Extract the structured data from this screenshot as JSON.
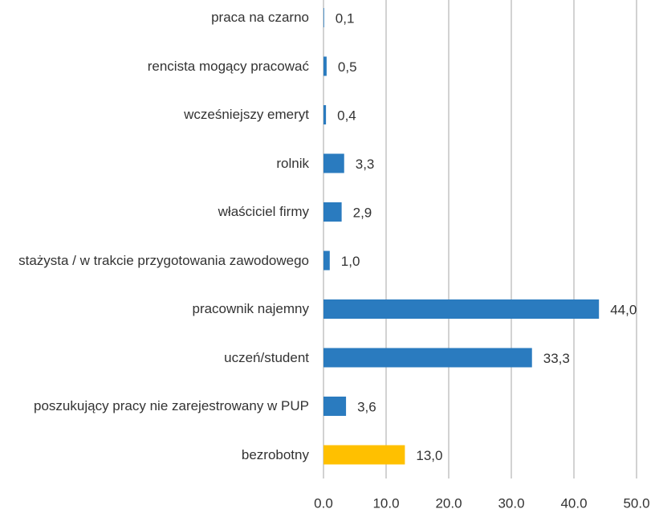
{
  "chart_data": {
    "type": "barh",
    "categories": [
      "praca na czarno",
      "rencista mogący pracować",
      "wcześniejszy emeryt",
      "rolnik",
      "właściciel firmy",
      "stażysta / w trakcie przygotowania zawodowego",
      "pracownik najemny",
      "uczeń/student",
      "poszukujący pracy nie zarejestrowany w PUP",
      "bezrobotny"
    ],
    "values": [
      0.1,
      0.5,
      0.4,
      3.3,
      2.9,
      1.0,
      44.0,
      33.3,
      3.6,
      13.0
    ],
    "value_labels": [
      "0,1",
      "0,5",
      "0,4",
      "3,3",
      "2,9",
      "1,0",
      "44,0",
      "33,3",
      "3,6",
      "13,0"
    ],
    "colors": [
      "#2a7bbf",
      "#2a7bbf",
      "#2a7bbf",
      "#2a7bbf",
      "#2a7bbf",
      "#2a7bbf",
      "#2a7bbf",
      "#2a7bbf",
      "#2a7bbf",
      "#ffc000"
    ],
    "xlim": [
      0,
      50
    ],
    "xticks": [
      {
        "value": 0,
        "label": "0.0"
      },
      {
        "value": 10,
        "label": "10.0"
      },
      {
        "value": 20,
        "label": "20.0"
      },
      {
        "value": 30,
        "label": "30.0"
      },
      {
        "value": 40,
        "label": "40.0"
      },
      {
        "value": 50,
        "label": "50.0"
      }
    ],
    "grid": true
  }
}
